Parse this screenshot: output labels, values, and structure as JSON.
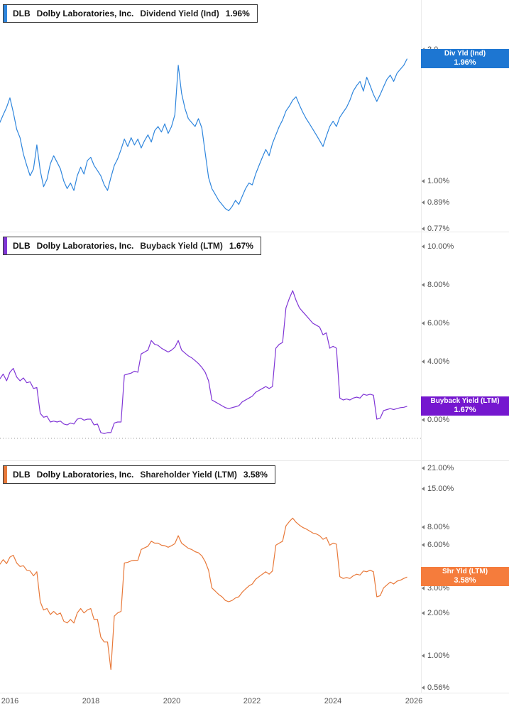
{
  "page": {
    "background": "#ffffff"
  },
  "x_axis": {
    "ticks": [
      "2016",
      "2018",
      "2020",
      "2022",
      "2024",
      "2026"
    ]
  },
  "chart_data": [
    {
      "type": "line",
      "ticker": "DLB",
      "company": "Dolby Laboratories, Inc.",
      "metric": "Dividend Yield (Ind)",
      "last_value": "1.96%",
      "color": "#2f86dd",
      "label_color": "#1d76d2",
      "value_label": {
        "line1": "Div Yld (Ind)",
        "line2": "1.96%"
      },
      "axis": {
        "scale": "log",
        "side": "right",
        "ticks": [
          "2.0",
          "1.00%",
          "0.89%",
          "0.77%"
        ]
      },
      "series": {
        "name": "Dividend Yield (Ind)",
        "unit": "%",
        "t0": 2015.75,
        "dt": 0.0833333,
        "values": [
          1.38,
          1.44,
          1.5,
          1.58,
          1.46,
          1.33,
          1.27,
          1.16,
          1.09,
          1.03,
          1.07,
          1.22,
          1.06,
          0.97,
          1.01,
          1.1,
          1.15,
          1.11,
          1.07,
          1.0,
          0.96,
          0.99,
          0.95,
          1.03,
          1.08,
          1.04,
          1.12,
          1.14,
          1.09,
          1.06,
          1.03,
          0.98,
          0.95,
          1.02,
          1.09,
          1.13,
          1.19,
          1.26,
          1.21,
          1.27,
          1.22,
          1.26,
          1.2,
          1.25,
          1.29,
          1.24,
          1.32,
          1.35,
          1.31,
          1.37,
          1.3,
          1.35,
          1.44,
          1.89,
          1.62,
          1.49,
          1.41,
          1.38,
          1.35,
          1.41,
          1.34,
          1.17,
          1.02,
          0.96,
          0.93,
          0.9,
          0.88,
          0.86,
          0.85,
          0.87,
          0.9,
          0.88,
          0.92,
          0.96,
          0.99,
          0.98,
          1.04,
          1.09,
          1.14,
          1.19,
          1.15,
          1.23,
          1.29,
          1.35,
          1.4,
          1.47,
          1.51,
          1.56,
          1.59,
          1.52,
          1.46,
          1.41,
          1.37,
          1.33,
          1.29,
          1.25,
          1.21,
          1.28,
          1.35,
          1.39,
          1.35,
          1.42,
          1.46,
          1.5,
          1.56,
          1.64,
          1.69,
          1.73,
          1.64,
          1.77,
          1.69,
          1.61,
          1.55,
          1.61,
          1.68,
          1.75,
          1.79,
          1.73,
          1.81,
          1.85,
          1.89,
          1.96
        ]
      }
    },
    {
      "type": "line",
      "ticker": "DLB",
      "company": "Dolby Laboratories, Inc.",
      "metric": "Buyback Yield (LTM)",
      "last_value": "1.67%",
      "color": "#8036d6",
      "label_color": "#7517cf",
      "value_label": {
        "line1": "Buyback Yield (LTM)",
        "line2": "1.67%"
      },
      "axis": {
        "scale": "linear",
        "side": "right",
        "zero_dotted": true,
        "ticks": [
          "10.00%",
          "8.00%",
          "6.00%",
          "4.00%",
          "0.00%"
        ]
      },
      "series": {
        "name": "Buyback Yield (LTM)",
        "unit": "%",
        "t0": 2015.75,
        "dt": 0.0833333,
        "values": [
          3.1,
          3.35,
          3.0,
          3.45,
          3.65,
          3.2,
          3.0,
          3.15,
          2.9,
          2.95,
          2.6,
          2.65,
          1.3,
          1.1,
          1.15,
          0.85,
          0.9,
          0.85,
          0.9,
          0.75,
          0.7,
          0.8,
          0.75,
          1.0,
          1.05,
          0.95,
          1.0,
          1.0,
          0.7,
          0.75,
          0.3,
          0.25,
          0.3,
          0.3,
          0.8,
          0.85,
          0.85,
          3.3,
          3.35,
          3.4,
          3.5,
          3.45,
          4.4,
          4.5,
          4.6,
          5.1,
          4.9,
          4.85,
          4.7,
          4.6,
          4.5,
          4.6,
          4.75,
          5.1,
          4.6,
          4.45,
          4.3,
          4.2,
          4.05,
          3.9,
          3.7,
          3.45,
          3.0,
          2.0,
          1.9,
          1.8,
          1.7,
          1.6,
          1.55,
          1.6,
          1.65,
          1.7,
          1.9,
          2.0,
          2.1,
          2.2,
          2.4,
          2.5,
          2.6,
          2.7,
          2.6,
          2.7,
          4.7,
          4.9,
          5.0,
          6.8,
          7.3,
          7.7,
          7.2,
          6.8,
          6.6,
          6.4,
          6.2,
          6.0,
          5.9,
          5.8,
          5.4,
          5.5,
          4.7,
          4.8,
          4.7,
          2.1,
          2.0,
          2.05,
          2.0,
          2.1,
          2.15,
          2.1,
          2.3,
          2.25,
          2.3,
          2.25,
          1.0,
          1.05,
          1.45,
          1.5,
          1.55,
          1.5,
          1.55,
          1.6,
          1.62,
          1.67
        ]
      }
    },
    {
      "type": "line",
      "ticker": "DLB",
      "company": "Dolby Laboratories, Inc.",
      "metric": "Shareholder Yield (LTM)",
      "last_value": "3.58%",
      "color": "#e8793a",
      "label_color": "#f57c3c",
      "value_label": {
        "line1": "Shr Yld (LTM)",
        "line2": "3.58%"
      },
      "axis": {
        "scale": "log",
        "side": "right",
        "ticks": [
          "21.00%",
          "15.00%",
          "8.00%",
          "6.00%",
          "3.00%",
          "2.00%",
          "1.00%",
          "0.56%"
        ]
      },
      "series": {
        "name": "Shareholder Yield (LTM)",
        "unit": "%",
        "t0": 2015.75,
        "dt": 0.0833333,
        "values": [
          4.4,
          4.75,
          4.45,
          4.95,
          5.1,
          4.5,
          4.25,
          4.3,
          4.0,
          3.95,
          3.65,
          3.9,
          2.4,
          2.1,
          2.15,
          1.95,
          2.05,
          1.95,
          2.0,
          1.75,
          1.7,
          1.8,
          1.7,
          2.0,
          2.15,
          2.0,
          2.1,
          2.15,
          1.8,
          1.8,
          1.35,
          1.25,
          1.25,
          0.8,
          1.9,
          2.0,
          2.05,
          4.5,
          4.55,
          4.65,
          4.7,
          4.7,
          5.6,
          5.75,
          5.9,
          6.4,
          6.2,
          6.2,
          6.0,
          5.95,
          5.8,
          5.95,
          6.15,
          7.0,
          6.2,
          5.95,
          5.7,
          5.6,
          5.4,
          5.3,
          5.05,
          4.6,
          4.0,
          3.0,
          2.85,
          2.7,
          2.6,
          2.45,
          2.4,
          2.45,
          2.55,
          2.6,
          2.8,
          2.95,
          3.1,
          3.2,
          3.45,
          3.6,
          3.75,
          3.9,
          3.75,
          3.95,
          6.0,
          6.2,
          6.4,
          8.2,
          8.8,
          9.3,
          8.7,
          8.3,
          8.0,
          7.8,
          7.55,
          7.3,
          7.2,
          7.0,
          6.6,
          6.8,
          6.0,
          6.2,
          6.1,
          3.6,
          3.5,
          3.55,
          3.5,
          3.65,
          3.75,
          3.7,
          3.95,
          3.9,
          4.0,
          3.9,
          2.6,
          2.65,
          3.0,
          3.15,
          3.3,
          3.2,
          3.35,
          3.4,
          3.5,
          3.58
        ]
      }
    }
  ]
}
